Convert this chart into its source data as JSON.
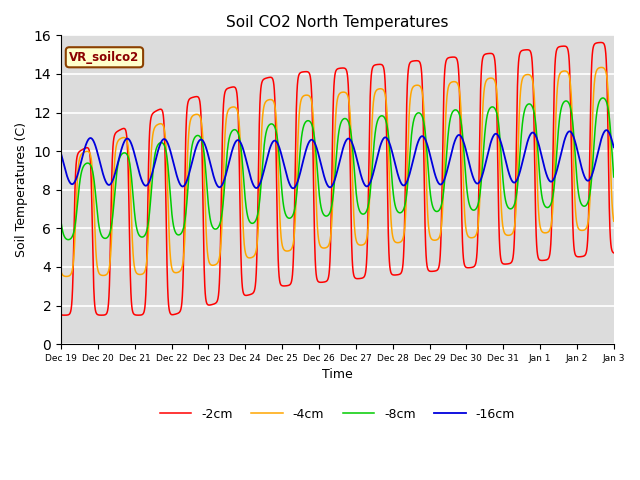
{
  "title": "Soil CO2 North Temperatures",
  "ylabel": "Soil Temperatures (C)",
  "xlabel": "Time",
  "ylim": [
    0,
    16
  ],
  "annotation": "VR_soilco2",
  "col_2cm": "#ff0000",
  "col_4cm": "#ffa500",
  "col_8cm": "#00cc00",
  "col_16cm": "#0000dd",
  "legend_labels": [
    "-2cm",
    "-4cm",
    "-8cm",
    "-16cm"
  ],
  "bg_color": "#dcdcdc",
  "tick_labels": [
    "Dec 19",
    "Dec 20",
    "Dec 21",
    "Dec 22",
    "Dec 23",
    "Dec 24",
    "Dec 25",
    "Dec 26",
    "Dec 27",
    "Dec 28",
    "Dec 29",
    "Dec 30",
    "Dec 31",
    "Jan 1",
    "Jan 2",
    "Jan 3"
  ],
  "grid_color": "#ffffff"
}
